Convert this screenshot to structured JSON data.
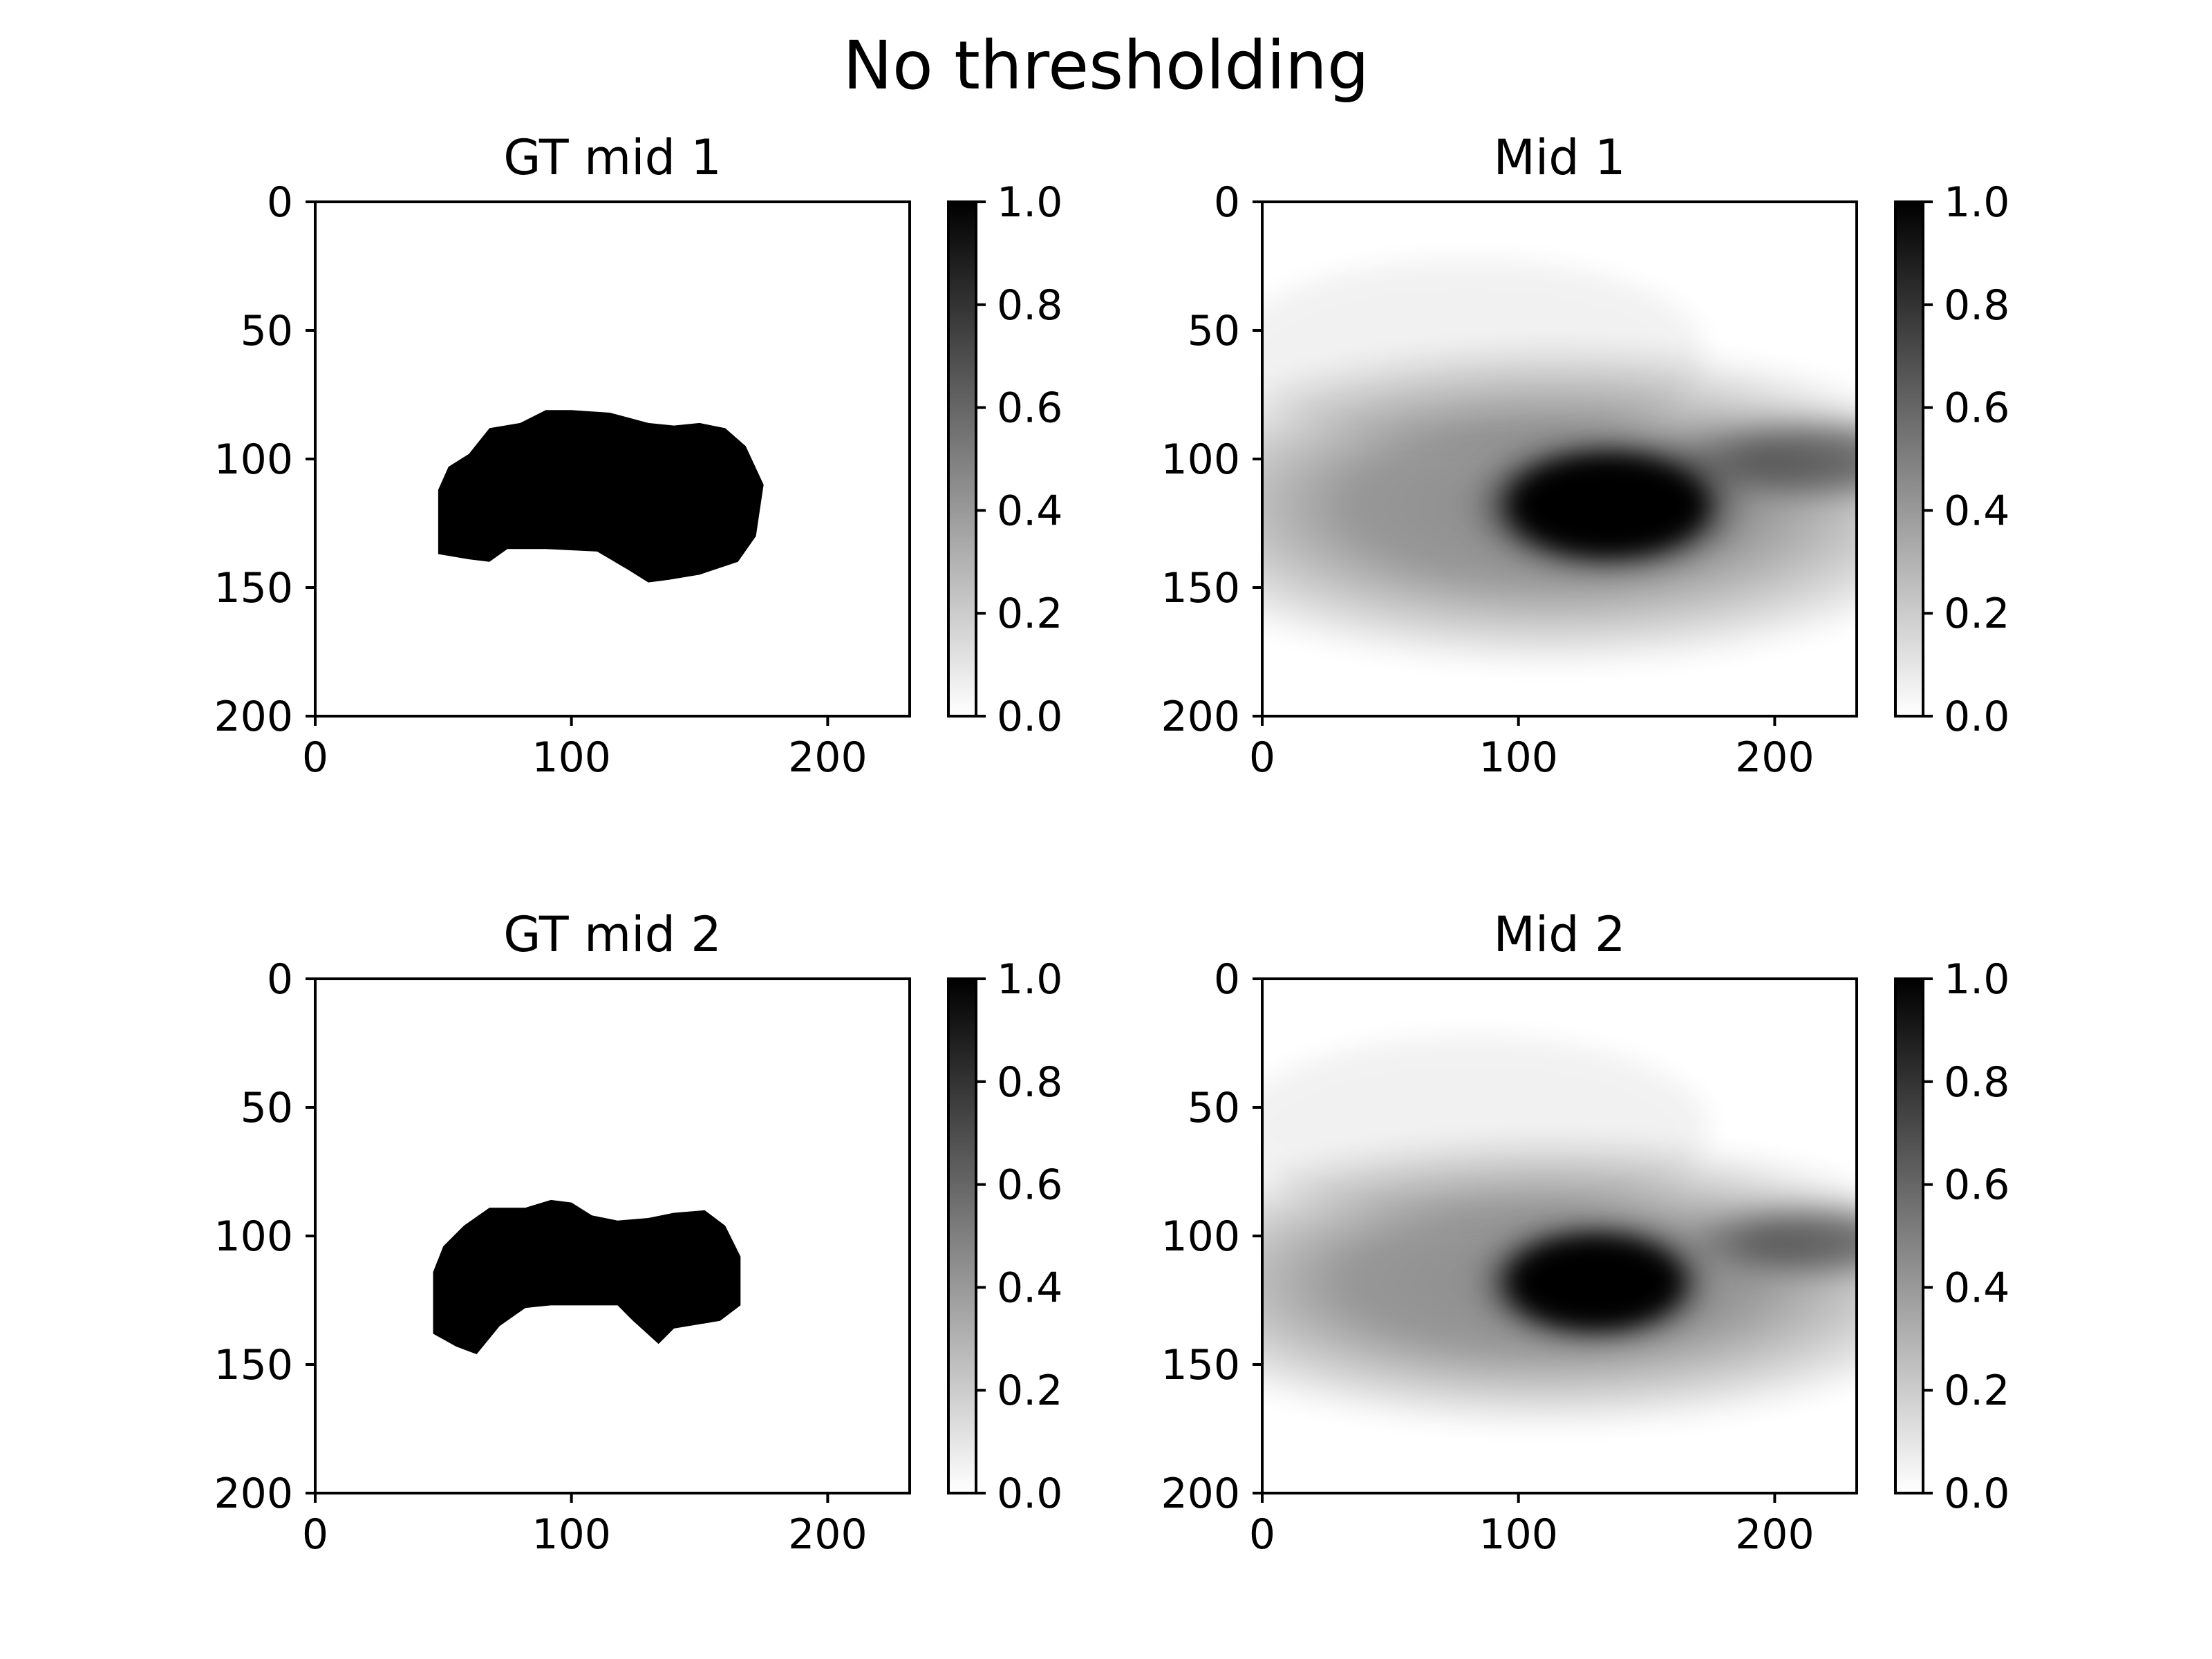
{
  "figure": {
    "suptitle": "No thresholding"
  },
  "colors": {
    "colormap": "Greys",
    "low": "#ffffff",
    "high": "#000000"
  },
  "chart_data": [
    {
      "type": "heatmap",
      "title": "GT mid 1",
      "content": "binary mask",
      "xlim": [
        0,
        232
      ],
      "ylim": [
        200,
        0
      ],
      "xticks": [
        0,
        100,
        200
      ],
      "yticks": [
        0,
        50,
        100,
        150,
        200
      ],
      "colorbar": {
        "range": [
          0.0,
          1.0
        ],
        "ticks": [
          "0.0",
          "0.2",
          "0.4",
          "0.6",
          "0.8",
          "1.0"
        ]
      },
      "mask_polygon": [
        [
          48,
          112
        ],
        [
          52,
          103
        ],
        [
          60,
          98
        ],
        [
          68,
          88
        ],
        [
          80,
          86
        ],
        [
          90,
          81
        ],
        [
          100,
          81
        ],
        [
          115,
          82
        ],
        [
          130,
          86
        ],
        [
          140,
          87
        ],
        [
          150,
          86
        ],
        [
          160,
          88
        ],
        [
          168,
          95
        ],
        [
          175,
          110
        ],
        [
          172,
          130
        ],
        [
          165,
          140
        ],
        [
          150,
          145
        ],
        [
          138,
          147
        ],
        [
          130,
          148
        ],
        [
          122,
          143
        ],
        [
          110,
          136
        ],
        [
          90,
          135
        ],
        [
          75,
          135
        ],
        [
          68,
          140
        ],
        [
          60,
          139
        ],
        [
          48,
          137
        ]
      ]
    },
    {
      "type": "heatmap",
      "title": "Mid 1",
      "content": "soft prediction",
      "xlim": [
        0,
        232
      ],
      "ylim": [
        200,
        0
      ],
      "xticks": [
        0,
        100,
        200
      ],
      "yticks": [
        0,
        50,
        100,
        150,
        200
      ],
      "colorbar": {
        "range": [
          0.0,
          1.0
        ],
        "ticks": [
          "0.0",
          "0.2",
          "0.4",
          "0.6",
          "0.8",
          "1.0"
        ]
      },
      "core_center": [
        135,
        118
      ],
      "core_radii": [
        55,
        20
      ],
      "peak": 1.0
    },
    {
      "type": "heatmap",
      "title": "GT mid 2",
      "content": "binary mask",
      "xlim": [
        0,
        232
      ],
      "ylim": [
        200,
        0
      ],
      "xticks": [
        0,
        100,
        200
      ],
      "yticks": [
        0,
        50,
        100,
        150,
        200
      ],
      "colorbar": {
        "range": [
          0.0,
          1.0
        ],
        "ticks": [
          "0.0",
          "0.2",
          "0.4",
          "0.6",
          "0.8",
          "1.0"
        ]
      },
      "mask_polygon": [
        [
          46,
          114
        ],
        [
          50,
          104
        ],
        [
          58,
          96
        ],
        [
          68,
          89
        ],
        [
          82,
          89
        ],
        [
          92,
          86
        ],
        [
          100,
          87
        ],
        [
          108,
          92
        ],
        [
          118,
          94
        ],
        [
          130,
          93
        ],
        [
          140,
          91
        ],
        [
          152,
          90
        ],
        [
          160,
          96
        ],
        [
          166,
          108
        ],
        [
          166,
          127
        ],
        [
          158,
          133
        ],
        [
          140,
          136
        ],
        [
          134,
          142
        ],
        [
          124,
          133
        ],
        [
          118,
          127
        ],
        [
          112,
          127
        ],
        [
          92,
          127
        ],
        [
          82,
          128
        ],
        [
          72,
          135
        ],
        [
          63,
          146
        ],
        [
          55,
          143
        ],
        [
          46,
          138
        ]
      ]
    },
    {
      "type": "heatmap",
      "title": "Mid 2",
      "content": "soft prediction",
      "xlim": [
        0,
        232
      ],
      "ylim": [
        200,
        0
      ],
      "xticks": [
        0,
        100,
        200
      ],
      "yticks": [
        0,
        50,
        100,
        150,
        200
      ],
      "colorbar": {
        "range": [
          0.0,
          1.0
        ],
        "ticks": [
          "0.0",
          "0.2",
          "0.4",
          "0.6",
          "0.8",
          "1.0"
        ]
      },
      "core_center": [
        130,
        118
      ],
      "core_radii": [
        48,
        18
      ],
      "peak": 1.0
    }
  ]
}
